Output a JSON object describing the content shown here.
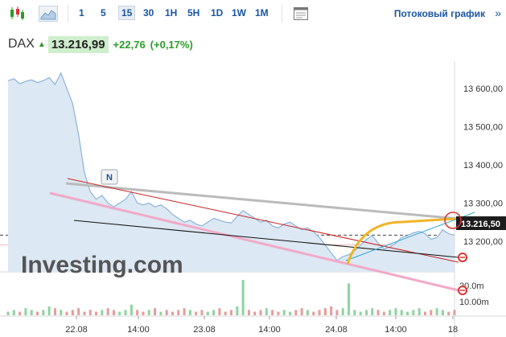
{
  "toolbar": {
    "timeframes": [
      "1",
      "5",
      "15",
      "30",
      "1H",
      "5H",
      "1D",
      "1W",
      "1M"
    ],
    "active": "15",
    "stream_label": "Потоковый график",
    "stream_icon": "double-chevron-right-icon",
    "chart_type_icons": [
      "candlestick-icon",
      "area-chart-icon"
    ],
    "settings_icon": "chart-settings-icon"
  },
  "quote": {
    "symbol": "DAX",
    "price": "13.216,99",
    "change": "+22,76",
    "change_pct": "(+0,17%)",
    "direction_icon": "up-arrow-icon",
    "up_color": "#2a9d2a"
  },
  "chart_data": {
    "type": "area",
    "x_tick_labels": [
      "22.08",
      "14:00",
      "23.08",
      "14:00",
      "24.08",
      "14:00",
      "18"
    ],
    "y_tick_labels": [
      "13 600,00",
      "13 500,00",
      "13 400,00",
      "13 300,00",
      "13 200,00"
    ],
    "ylim": [
      13120,
      13650
    ],
    "volume_labels": [
      "20.0m",
      "10.00m"
    ],
    "current_price_label": "13.216,50",
    "event_marker": "N",
    "watermark": "Investing.com",
    "series": [
      {
        "values": [
          13620,
          13625,
          13612,
          13618,
          13622,
          13615,
          13620,
          13628,
          13610,
          13640,
          13600,
          13560,
          13480,
          13380,
          13330,
          13310,
          13320,
          13300,
          13290,
          13300,
          13310,
          13330,
          13300,
          13295,
          13300,
          13290,
          13295,
          13285,
          13270,
          13260,
          13250,
          13255,
          13245,
          13240,
          13250,
          13260,
          13255,
          13250,
          13248,
          13265,
          13280,
          13270,
          13260,
          13250,
          13255,
          13240,
          13235,
          13245,
          13250,
          13240,
          13230,
          13235,
          13225,
          13210,
          13190,
          13170,
          13150,
          13160,
          13165,
          13175,
          13190,
          13205,
          13215,
          13195,
          13180,
          13185,
          13195,
          13210,
          13215,
          13222,
          13226,
          13220,
          13205,
          13210,
          13230,
          13220,
          13216
        ]
      }
    ],
    "volume": [
      2,
      3,
      2,
      4,
      3,
      2,
      3,
      5,
      4,
      3,
      2,
      3,
      4,
      2,
      3,
      2,
      3,
      4,
      3,
      2,
      3,
      6,
      3,
      2,
      3,
      4,
      2,
      3,
      2,
      3,
      4,
      3,
      2,
      3,
      2,
      3,
      4,
      2,
      3,
      5,
      20,
      3,
      2,
      3,
      4,
      3,
      2,
      3,
      2,
      3,
      4,
      3,
      2,
      3,
      4,
      5,
      3,
      4,
      18,
      3,
      2,
      3,
      4,
      3,
      2,
      3,
      4,
      3,
      2,
      3,
      4,
      2,
      3,
      4,
      3,
      2,
      3
    ]
  },
  "colors": {
    "area_fill": "#dce8f3",
    "area_line": "#8cb3d9",
    "accent": "#1a55a3"
  }
}
